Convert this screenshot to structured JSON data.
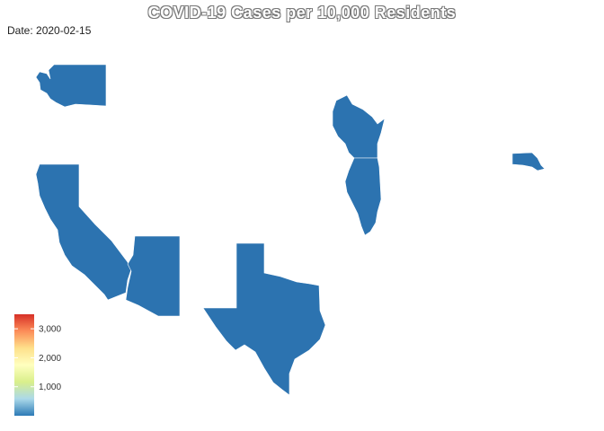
{
  "title": "COVID-19 Cases per 10,000 Residents",
  "date_label": "Date: 2020-02-15",
  "map": {
    "fill_color": "#2c73b0",
    "states": [
      {
        "id": "washington"
      },
      {
        "id": "california"
      },
      {
        "id": "arizona"
      },
      {
        "id": "texas"
      },
      {
        "id": "wisconsin"
      },
      {
        "id": "illinois"
      },
      {
        "id": "massachusetts"
      }
    ]
  },
  "legend": {
    "scale_min": 0,
    "scale_max": 3500,
    "colors": [
      "#2c7bb6",
      "#abd9e9",
      "#d9ef8b",
      "#ffffbf",
      "#fee08b",
      "#fc8d59",
      "#d73027"
    ],
    "ticks": [
      {
        "value": 1000,
        "label": "1,000"
      },
      {
        "value": 2000,
        "label": "2,000"
      },
      {
        "value": 3000,
        "label": "3,000"
      }
    ]
  }
}
